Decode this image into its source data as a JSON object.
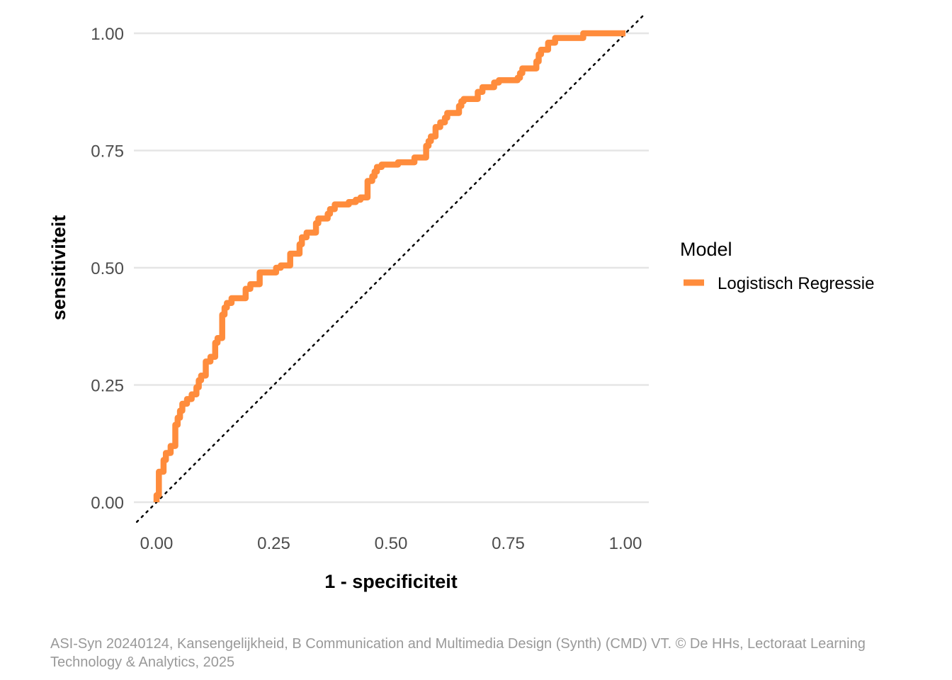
{
  "chart_data": {
    "type": "line",
    "xlabel": "1 - specificiteit",
    "ylabel": "sensitiviteit",
    "xlim": [
      0,
      1
    ],
    "ylim": [
      0,
      1
    ],
    "x_ticks": [
      "0.00",
      "0.25",
      "0.50",
      "0.75",
      "1.00"
    ],
    "y_ticks": [
      "0.00",
      "0.25",
      "0.50",
      "0.75",
      "1.00"
    ],
    "grid": true,
    "legend": {
      "title": "Model",
      "position": "right"
    },
    "reference_line": {
      "type": "diagonal",
      "style": "dotted",
      "color": "#000000"
    },
    "series": [
      {
        "name": "Logistisch Regressie",
        "color": "#FF8C3C",
        "points": [
          [
            0.0,
            0.0
          ],
          [
            0.0,
            0.015
          ],
          [
            0.005,
            0.015
          ],
          [
            0.005,
            0.065
          ],
          [
            0.015,
            0.065
          ],
          [
            0.015,
            0.09
          ],
          [
            0.02,
            0.09
          ],
          [
            0.02,
            0.105
          ],
          [
            0.03,
            0.105
          ],
          [
            0.03,
            0.12
          ],
          [
            0.04,
            0.12
          ],
          [
            0.04,
            0.165
          ],
          [
            0.045,
            0.165
          ],
          [
            0.045,
            0.18
          ],
          [
            0.05,
            0.18
          ],
          [
            0.05,
            0.195
          ],
          [
            0.055,
            0.195
          ],
          [
            0.055,
            0.21
          ],
          [
            0.065,
            0.21
          ],
          [
            0.065,
            0.22
          ],
          [
            0.075,
            0.22
          ],
          [
            0.075,
            0.23
          ],
          [
            0.085,
            0.23
          ],
          [
            0.085,
            0.245
          ],
          [
            0.09,
            0.245
          ],
          [
            0.09,
            0.26
          ],
          [
            0.095,
            0.26
          ],
          [
            0.095,
            0.27
          ],
          [
            0.105,
            0.27
          ],
          [
            0.105,
            0.3
          ],
          [
            0.115,
            0.3
          ],
          [
            0.115,
            0.31
          ],
          [
            0.125,
            0.31
          ],
          [
            0.125,
            0.34
          ],
          [
            0.13,
            0.34
          ],
          [
            0.13,
            0.35
          ],
          [
            0.14,
            0.35
          ],
          [
            0.14,
            0.4
          ],
          [
            0.145,
            0.4
          ],
          [
            0.145,
            0.415
          ],
          [
            0.15,
            0.415
          ],
          [
            0.15,
            0.425
          ],
          [
            0.16,
            0.425
          ],
          [
            0.16,
            0.435
          ],
          [
            0.19,
            0.435
          ],
          [
            0.19,
            0.455
          ],
          [
            0.2,
            0.455
          ],
          [
            0.2,
            0.465
          ],
          [
            0.22,
            0.465
          ],
          [
            0.22,
            0.49
          ],
          [
            0.255,
            0.49
          ],
          [
            0.255,
            0.5
          ],
          [
            0.265,
            0.5
          ],
          [
            0.265,
            0.505
          ],
          [
            0.285,
            0.505
          ],
          [
            0.285,
            0.53
          ],
          [
            0.305,
            0.53
          ],
          [
            0.305,
            0.55
          ],
          [
            0.31,
            0.55
          ],
          [
            0.31,
            0.565
          ],
          [
            0.32,
            0.565
          ],
          [
            0.32,
            0.575
          ],
          [
            0.34,
            0.575
          ],
          [
            0.34,
            0.595
          ],
          [
            0.345,
            0.595
          ],
          [
            0.345,
            0.605
          ],
          [
            0.365,
            0.605
          ],
          [
            0.365,
            0.615
          ],
          [
            0.37,
            0.615
          ],
          [
            0.37,
            0.625
          ],
          [
            0.38,
            0.625
          ],
          [
            0.38,
            0.635
          ],
          [
            0.41,
            0.635
          ],
          [
            0.41,
            0.64
          ],
          [
            0.425,
            0.64
          ],
          [
            0.425,
            0.645
          ],
          [
            0.435,
            0.645
          ],
          [
            0.435,
            0.65
          ],
          [
            0.45,
            0.65
          ],
          [
            0.45,
            0.665
          ],
          [
            0.45,
            0.685
          ],
          [
            0.46,
            0.685
          ],
          [
            0.46,
            0.695
          ],
          [
            0.465,
            0.695
          ],
          [
            0.465,
            0.705
          ],
          [
            0.47,
            0.705
          ],
          [
            0.47,
            0.715
          ],
          [
            0.48,
            0.715
          ],
          [
            0.48,
            0.72
          ],
          [
            0.515,
            0.72
          ],
          [
            0.515,
            0.725
          ],
          [
            0.55,
            0.725
          ],
          [
            0.55,
            0.735
          ],
          [
            0.575,
            0.735
          ],
          [
            0.575,
            0.76
          ],
          [
            0.58,
            0.76
          ],
          [
            0.58,
            0.77
          ],
          [
            0.585,
            0.77
          ],
          [
            0.585,
            0.78
          ],
          [
            0.595,
            0.78
          ],
          [
            0.595,
            0.8
          ],
          [
            0.605,
            0.8
          ],
          [
            0.605,
            0.81
          ],
          [
            0.615,
            0.81
          ],
          [
            0.615,
            0.82
          ],
          [
            0.62,
            0.82
          ],
          [
            0.62,
            0.83
          ],
          [
            0.645,
            0.83
          ],
          [
            0.645,
            0.845
          ],
          [
            0.65,
            0.845
          ],
          [
            0.65,
            0.855
          ],
          [
            0.655,
            0.855
          ],
          [
            0.655,
            0.86
          ],
          [
            0.685,
            0.86
          ],
          [
            0.685,
            0.875
          ],
          [
            0.695,
            0.875
          ],
          [
            0.695,
            0.885
          ],
          [
            0.72,
            0.885
          ],
          [
            0.72,
            0.895
          ],
          [
            0.73,
            0.895
          ],
          [
            0.73,
            0.9
          ],
          [
            0.77,
            0.9
          ],
          [
            0.77,
            0.905
          ],
          [
            0.775,
            0.905
          ],
          [
            0.775,
            0.915
          ],
          [
            0.78,
            0.915
          ],
          [
            0.78,
            0.925
          ],
          [
            0.81,
            0.925
          ],
          [
            0.81,
            0.94
          ],
          [
            0.815,
            0.94
          ],
          [
            0.815,
            0.955
          ],
          [
            0.82,
            0.955
          ],
          [
            0.82,
            0.965
          ],
          [
            0.835,
            0.965
          ],
          [
            0.835,
            0.98
          ],
          [
            0.85,
            0.98
          ],
          [
            0.85,
            0.99
          ],
          [
            0.91,
            0.99
          ],
          [
            0.91,
            1.0
          ],
          [
            1.0,
            1.0
          ]
        ]
      }
    ]
  },
  "caption": "ASI-Syn 20240124, Kansengelijkheid, B Communication and Multimedia Design (Synth) (CMD) VT. © De HHs, Lectoraat Learning Technology & Analytics, 2025"
}
